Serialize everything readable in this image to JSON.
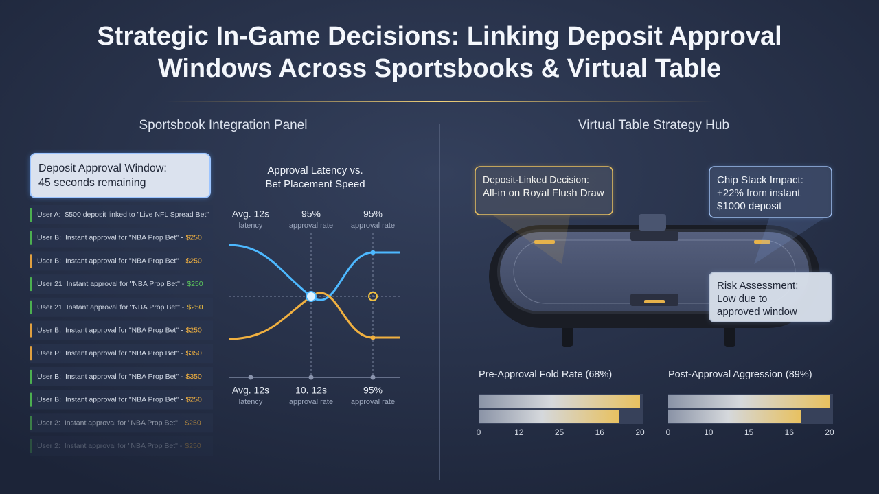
{
  "header": {
    "title_lines": [
      "Strategic In-Game Decisions: Linking Deposit Approval",
      "Windows Across Sportsbooks & Virtual Table"
    ]
  },
  "left": {
    "heading": "Sportsbook Integration Panel",
    "deposit_card": {
      "lines": [
        "Deposit Approval Window:",
        "45 seconds remaining"
      ]
    },
    "feed": [
      {
        "user": "User A:",
        "text": "$500 deposit linked to \"Live NFL Spread Bet\"",
        "bar_color": "#4caf50"
      },
      {
        "user": "User B:",
        "text": "Instant approval for \"NBA Prop Bet\" -",
        "amount": "$250",
        "amount_color": "#f0b040",
        "bar_color": "#4caf50"
      },
      {
        "user": "User B:",
        "text": "Instant approval for \"NBA Prop Bet\" -",
        "amount": "$250",
        "amount_color": "#f0b040",
        "bar_color": "#e0a040"
      },
      {
        "user": "User 21",
        "text": "Instant approval for \"NBA Prop Bet\" -",
        "amount": "$250",
        "amount_color": "#5cc85c",
        "bar_color": "#4caf50"
      },
      {
        "user": "User 21",
        "text": "Instant approval for \"NBA Prop Bet\" -",
        "amount": "$250",
        "amount_color": "#f0c040",
        "bar_color": "#4caf50"
      },
      {
        "user": "User B:",
        "text": "Instant approval for \"NBA Prop Bet\" -",
        "amount": "$250",
        "amount_color": "#f0b040",
        "bar_color": "#e0a040"
      },
      {
        "user": "User P:",
        "text": "Instant approval for \"NBA Prop Bet\" -",
        "amount": "$350",
        "amount_color": "#f0b040",
        "bar_color": "#e0a040"
      },
      {
        "user": "User B:",
        "text": "Instant approval for \"NBA Prop Bet\" -",
        "amount": "$350",
        "amount_color": "#f0b040",
        "bar_color": "#4caf50"
      },
      {
        "user": "User B:",
        "text": "Instant approval for \"NBA Prop Bet\" -",
        "amount": "$250",
        "amount_color": "#f0b040",
        "bar_color": "#4caf50"
      },
      {
        "user": "User 2:",
        "text": "Instant approval for \"NBA Prop Bet\" -",
        "amount": "$250",
        "amount_color": "#f0b040",
        "bar_color": "#4caf50"
      },
      {
        "user": "User 2:",
        "text": "Instant approval for \"NBA Prop Bet\" -",
        "amount": "$250",
        "amount_color": "#f0b040",
        "bar_color": "#4caf50"
      }
    ],
    "latency_chart": {
      "title_lines": [
        "Approval Latency vs.",
        "Bet Placement Speed"
      ],
      "top_labels": [
        [
          "Avg. 12s",
          "latency"
        ],
        [
          "95%",
          "approval rate"
        ],
        [
          "95%",
          "approval rate"
        ]
      ],
      "bottom_labels": [
        [
          "Avg. 12s",
          "latency"
        ],
        [
          "10. 12s",
          "approval rate"
        ],
        [
          "95%",
          "approval rate"
        ]
      ]
    }
  },
  "right": {
    "heading": "Virtual Table Strategy Hub",
    "callouts": [
      {
        "lines": [
          "Deposit-Linked Decision:",
          "All-in on Royal Flush Draw"
        ]
      },
      {
        "lines": [
          "Chip Stack Impact:",
          "+22% from instant",
          "$1000 deposit"
        ]
      },
      {
        "lines": [
          "Risk Assessment:",
          "Low due to",
          "approved window"
        ]
      }
    ],
    "gauges": [
      {
        "label": "Pre-Approval Fold Rate (68%)",
        "ticks": [
          "0",
          "12",
          "25",
          "16",
          "20"
        ]
      },
      {
        "label": "Post-Approval Aggression (89%)",
        "ticks": [
          "0",
          "10",
          "15",
          "16",
          "20"
        ]
      }
    ]
  }
}
